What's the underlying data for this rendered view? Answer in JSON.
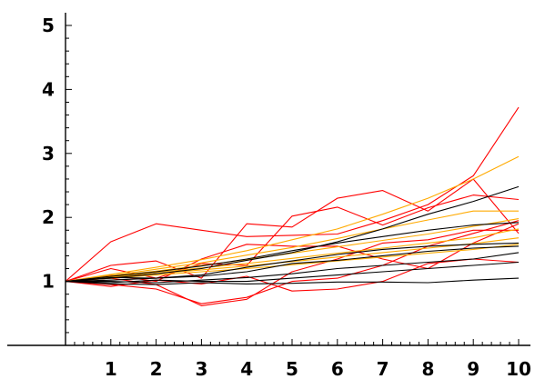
{
  "chart_data": {
    "type": "line",
    "title": "",
    "xlabel": "",
    "ylabel": "",
    "xlim": [
      0,
      10
    ],
    "ylim": [
      0,
      5
    ],
    "xticks": [
      "1",
      "2",
      "3",
      "4",
      "5",
      "6",
      "7",
      "8",
      "9",
      "10"
    ],
    "yticks": [
      "1",
      "2",
      "3",
      "4",
      "5"
    ],
    "grid": false,
    "legend": "none",
    "x": [
      0,
      1,
      2,
      3,
      4,
      5,
      6,
      7,
      8,
      9,
      10
    ],
    "colors": {
      "red": "#ff0000",
      "orange": "#ffaa00",
      "black": "#000000"
    },
    "series": [
      {
        "color": "red",
        "values": [
          1.0,
          1.62,
          1.9,
          1.8,
          1.7,
          1.72,
          1.74,
          1.95,
          2.2,
          2.65,
          3.72
        ]
      },
      {
        "color": "red",
        "values": [
          1.0,
          1.25,
          1.32,
          1.05,
          1.9,
          1.85,
          2.3,
          2.42,
          2.1,
          2.6,
          1.75
        ]
      },
      {
        "color": "red",
        "values": [
          1.0,
          1.2,
          1.05,
          1.28,
          1.25,
          2.02,
          2.16,
          1.88,
          2.15,
          2.35,
          2.28
        ]
      },
      {
        "color": "red",
        "values": [
          1.0,
          0.95,
          0.88,
          0.65,
          0.75,
          1.0,
          1.05,
          1.25,
          1.55,
          1.75,
          1.95
        ]
      },
      {
        "color": "red",
        "values": [
          1.0,
          1.1,
          1.0,
          1.35,
          1.58,
          1.55,
          1.55,
          1.35,
          1.2,
          1.6,
          1.9
        ]
      },
      {
        "color": "red",
        "values": [
          1.0,
          1.05,
          0.95,
          0.62,
          0.72,
          1.15,
          1.35,
          1.6,
          1.65,
          1.8,
          1.8
        ]
      },
      {
        "color": "red",
        "values": [
          1.0,
          0.92,
          1.02,
          0.96,
          1.08,
          0.85,
          0.88,
          1.0,
          1.28,
          1.35,
          1.3
        ]
      },
      {
        "color": "orange",
        "values": [
          1.0,
          1.11,
          1.22,
          1.34,
          1.48,
          1.65,
          1.82,
          2.05,
          2.3,
          2.6,
          2.95
        ]
      },
      {
        "color": "orange",
        "values": [
          1.0,
          1.09,
          1.19,
          1.29,
          1.41,
          1.53,
          1.67,
          1.82,
          1.96,
          2.1,
          2.1
        ]
      },
      {
        "color": "orange",
        "values": [
          1.0,
          1.08,
          1.16,
          1.25,
          1.34,
          1.44,
          1.54,
          1.64,
          1.74,
          1.86,
          1.98
        ]
      },
      {
        "color": "orange",
        "values": [
          1.0,
          1.07,
          1.14,
          1.21,
          1.28,
          1.36,
          1.44,
          1.52,
          1.6,
          1.68,
          1.82
        ]
      },
      {
        "color": "orange",
        "values": [
          1.0,
          1.06,
          1.12,
          1.18,
          1.24,
          1.31,
          1.38,
          1.45,
          1.52,
          1.59,
          1.68
        ]
      },
      {
        "color": "orange",
        "values": [
          1.0,
          1.05,
          1.1,
          1.15,
          1.2,
          1.26,
          1.32,
          1.38,
          1.44,
          1.5,
          1.58
        ]
      },
      {
        "color": "black",
        "values": [
          1.0,
          1.05,
          1.12,
          1.2,
          1.33,
          1.45,
          1.62,
          1.82,
          2.05,
          2.25,
          2.48
        ]
      },
      {
        "color": "black",
        "values": [
          1.0,
          1.08,
          1.15,
          1.24,
          1.35,
          1.48,
          1.6,
          1.7,
          1.8,
          1.88,
          1.92
        ]
      },
      {
        "color": "black",
        "values": [
          1.0,
          1.06,
          1.05,
          1.1,
          1.22,
          1.32,
          1.42,
          1.5,
          1.55,
          1.58,
          1.6
        ]
      },
      {
        "color": "black",
        "values": [
          1.0,
          1.02,
          1.05,
          1.08,
          1.15,
          1.28,
          1.33,
          1.4,
          1.47,
          1.52,
          1.55
        ]
      },
      {
        "color": "black",
        "values": [
          1.0,
          1.0,
          0.98,
          1.02,
          1.06,
          1.12,
          1.2,
          1.25,
          1.3,
          1.35,
          1.45
        ]
      },
      {
        "color": "black",
        "values": [
          1.0,
          0.98,
          1.02,
          1.0,
          1.0,
          1.05,
          1.1,
          1.15,
          1.2,
          1.25,
          1.3
        ]
      },
      {
        "color": "black",
        "values": [
          1.0,
          0.96,
          0.95,
          0.98,
          0.96,
          0.97,
          0.99,
          0.99,
          0.98,
          1.02,
          1.05
        ]
      }
    ]
  }
}
